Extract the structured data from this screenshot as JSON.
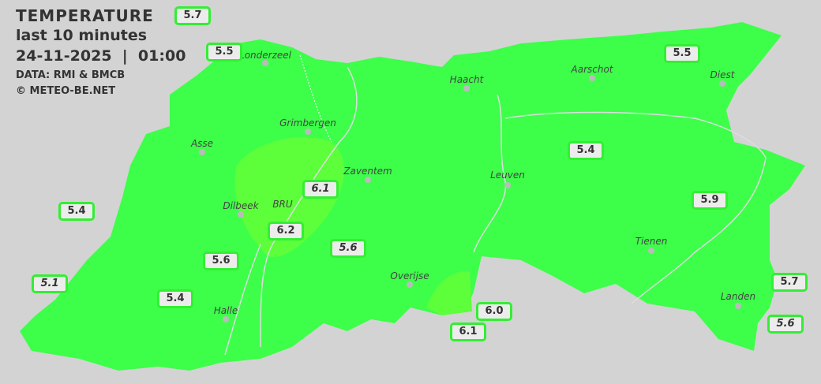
{
  "header": {
    "title": "TEMPERATURE",
    "subtitle": "last 10 minutes",
    "datetime": "24-11-2025  |  01:00",
    "source": "DATA: RMI & BMCB",
    "copyright": "© METEO-BE.NET"
  },
  "colors": {
    "land": "#3dff4a",
    "warm_zone": "#5cff3a",
    "background": "#d3d3d3",
    "label_border": "#33ee33"
  },
  "cities": [
    {
      "name": "Londerzeel"
    },
    {
      "name": "Haacht"
    },
    {
      "name": "Aarschot"
    },
    {
      "name": "Diest"
    },
    {
      "name": "Grimbergen"
    },
    {
      "name": "Asse"
    },
    {
      "name": "Zaventem"
    },
    {
      "name": "Leuven"
    },
    {
      "name": "Dilbeek"
    },
    {
      "name": "BRU"
    },
    {
      "name": "Tienen"
    },
    {
      "name": "Overijse"
    },
    {
      "name": "Halle"
    },
    {
      "name": "Landen"
    }
  ],
  "stations": [
    {
      "value": "5.7"
    },
    {
      "value": "5.5"
    },
    {
      "value": "5.5"
    },
    {
      "value": "5.4"
    },
    {
      "value": "5.9"
    },
    {
      "value": "5.4"
    },
    {
      "value": "6.1"
    },
    {
      "value": "6.2"
    },
    {
      "value": "5.6"
    },
    {
      "value": "5.6"
    },
    {
      "value": "5.1"
    },
    {
      "value": "5.4"
    },
    {
      "value": "6.0"
    },
    {
      "value": "6.1"
    },
    {
      "value": "5.7"
    },
    {
      "value": "5.6"
    }
  ]
}
